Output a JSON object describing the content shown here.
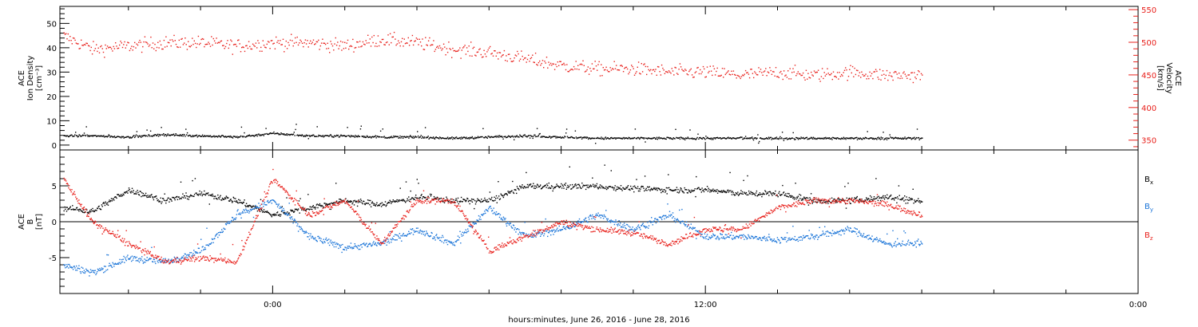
{
  "figure": {
    "xlabel": "hours:minutes, June 26, 2016 - June 28, 2016",
    "x_ticks": [
      "0:00",
      "12:00",
      "0:00"
    ]
  },
  "colors": {
    "black": "#000000",
    "red": "#e8211c",
    "blue": "#1a74d8"
  },
  "chart_data": [
    {
      "type": "scatter",
      "panel": "top",
      "x_unit": "hours relative to 00:00 June 27, 2016",
      "xlim": [
        -5.9,
        24
      ],
      "x_ticks": [
        0,
        12,
        24
      ],
      "x_tick_labels": [
        "0:00",
        "12:00",
        "0:00"
      ],
      "left_axis": {
        "label_lines": [
          "ACE",
          "Ion Density",
          "[cm⁻³]"
        ],
        "ylim": [
          -2,
          57
        ],
        "ticks": [
          0,
          10,
          20,
          30,
          40,
          50
        ],
        "tick_labels": [
          "0",
          "10",
          "20",
          "30",
          "40",
          "50"
        ]
      },
      "right_axis": {
        "label_lines": [
          "ACE",
          "Velocity",
          "[km/s]"
        ],
        "ylim": [
          335,
          555
        ],
        "ticks": [
          350,
          400,
          450,
          500,
          550
        ],
        "tick_labels": [
          "350",
          "400",
          "450",
          "500",
          "550"
        ],
        "color": "#e8211c"
      },
      "series": [
        {
          "axis": "left",
          "color": "#000000",
          "x": [
            -5.8,
            -5,
            -4,
            -3,
            -2,
            -1,
            0,
            1,
            2,
            3,
            4,
            5,
            6,
            7,
            8,
            9,
            10,
            11,
            12,
            13,
            14,
            15,
            16,
            17,
            18
          ],
          "y": [
            4,
            4,
            3.5,
            4.5,
            4,
            3.5,
            5,
            4,
            4,
            3.5,
            3.5,
            3,
            3.5,
            4,
            3.5,
            3,
            3,
            3,
            3,
            3,
            3,
            3,
            3,
            3,
            3
          ]
        },
        {
          "axis": "right",
          "color": "#e8211c",
          "x": [
            -5.8,
            -5,
            -4,
            -3,
            -2,
            -1,
            0,
            1,
            2,
            3,
            4,
            5,
            6,
            7,
            8,
            9,
            10,
            11,
            12,
            13,
            14,
            15,
            16,
            17,
            18
          ],
          "y": [
            510,
            490,
            495,
            500,
            500,
            495,
            500,
            500,
            495,
            505,
            500,
            490,
            485,
            475,
            465,
            460,
            460,
            455,
            455,
            450,
            455,
            450,
            455,
            450,
            450
          ]
        }
      ]
    },
    {
      "type": "scatter",
      "panel": "bottom",
      "x_unit": "hours relative to 00:00 June 27, 2016",
      "xlim": [
        -5.9,
        24
      ],
      "x_ticks": [
        0,
        12,
        24
      ],
      "x_tick_labels": [
        "0:00",
        "12:00",
        "0:00"
      ],
      "left_axis": {
        "label_lines": [
          "ACE",
          "B",
          "[nT]"
        ],
        "ylim": [
          -10,
          10
        ],
        "ticks": [
          -5,
          0,
          5
        ],
        "tick_labels": [
          "-5",
          "0",
          "5"
        ]
      },
      "zero_line": true,
      "series": [
        {
          "name": "B",
          "subscript": "x",
          "color": "#000000",
          "x": [
            -5.8,
            -5,
            -4,
            -3,
            -2,
            -1,
            0,
            1,
            2,
            3,
            4,
            5,
            6,
            7,
            8,
            9,
            10,
            11,
            12,
            13,
            14,
            15,
            16,
            17,
            18
          ],
          "y": [
            2,
            1.5,
            4.5,
            3,
            4,
            3,
            1,
            2,
            3,
            2.5,
            3.5,
            3,
            3,
            5,
            5,
            5,
            4.7,
            4.5,
            4.5,
            4,
            4,
            3,
            3,
            3.5,
            3
          ]
        },
        {
          "name": "B",
          "subscript": "y",
          "color": "#1a74d8",
          "x": [
            -5.8,
            -5,
            -4,
            -3,
            -2,
            -1,
            0,
            1,
            2,
            3,
            4,
            5,
            6,
            7,
            8,
            9,
            10,
            11,
            12,
            13,
            14,
            15,
            16,
            17,
            18
          ],
          "y": [
            -6,
            -7,
            -5,
            -5.5,
            -4,
            1,
            3,
            -2,
            -3.5,
            -3,
            -1,
            -3,
            2,
            -2,
            -1,
            1,
            -1,
            1,
            -2,
            -2,
            -2.5,
            -2,
            -1,
            -3,
            -3
          ]
        },
        {
          "name": "B",
          "subscript": "z",
          "color": "#e8211c",
          "x": [
            -5.8,
            -5,
            -4,
            -3,
            -2,
            -1,
            0,
            1,
            2,
            3,
            4,
            5,
            6,
            7,
            8,
            9,
            10,
            11,
            12,
            13,
            14,
            15,
            16,
            17,
            18
          ],
          "y": [
            6,
            0,
            -3,
            -5.5,
            -5,
            -5.5,
            6,
            1,
            3,
            -3,
            3,
            3,
            -4,
            -2,
            0,
            -1,
            -1.5,
            -3,
            -1,
            -1,
            2,
            3,
            3,
            2.5,
            1
          ]
        }
      ]
    }
  ]
}
